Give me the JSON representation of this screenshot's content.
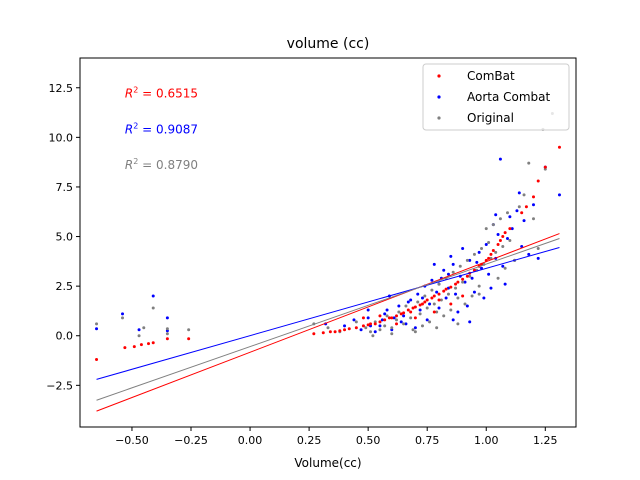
{
  "chart_data": {
    "type": "scatter",
    "title": "volume (cc)",
    "xlabel": "Volume(cc)",
    "ylabel": "",
    "xlim": [
      -0.72,
      1.38
    ],
    "ylim": [
      -4.6,
      14.0
    ],
    "xticks": [
      -0.75,
      -0.5,
      -0.25,
      0.0,
      0.25,
      0.5,
      0.75,
      1.0,
      1.25
    ],
    "xtick_labels": [
      "−0.75",
      "−0.50",
      "−0.25",
      "0.00",
      "0.25",
      "0.50",
      "0.75",
      "1.00",
      "1.25"
    ],
    "yticks": [
      -2.5,
      0.0,
      2.5,
      5.0,
      7.5,
      10.0,
      12.5
    ],
    "ytick_labels": [
      "−2.5",
      "0.0",
      "2.5",
      "5.0",
      "7.5",
      "10.0",
      "12.5"
    ],
    "grid": false,
    "legend_position": "top-right",
    "annotations": [
      {
        "prefix": "R",
        "sup": "2",
        "text": " = 0.6515",
        "color": "#ff0000",
        "x": -0.53,
        "y": 12.2
      },
      {
        "prefix": "R",
        "sup": "2",
        "text": " = 0.9087",
        "color": "#0000ff",
        "x": -0.53,
        "y": 10.4
      },
      {
        "prefix": "R",
        "sup": "2",
        "text": " = 0.8790",
        "color": "#808080",
        "x": -0.53,
        "y": 8.6
      }
    ],
    "series": [
      {
        "name": "ComBat",
        "color": "#ff0000",
        "fit": {
          "x": [
            -0.65,
            1.31
          ],
          "y": [
            -3.8,
            5.15
          ]
        },
        "points": [
          [
            -0.65,
            -1.2
          ],
          [
            -0.53,
            -0.6
          ],
          [
            -0.49,
            -0.55
          ],
          [
            -0.46,
            -0.45
          ],
          [
            -0.43,
            -0.4
          ],
          [
            -0.41,
            -0.35
          ],
          [
            -0.35,
            -0.15
          ],
          [
            -0.26,
            -0.15
          ],
          [
            0.27,
            0.1
          ],
          [
            0.31,
            0.15
          ],
          [
            0.34,
            0.2
          ],
          [
            0.36,
            0.2
          ],
          [
            0.38,
            0.25
          ],
          [
            0.4,
            0.3
          ],
          [
            0.42,
            0.35
          ],
          [
            0.45,
            0.4
          ],
          [
            0.48,
            0.5
          ],
          [
            0.5,
            0.55
          ],
          [
            0.51,
            0.6
          ],
          [
            0.53,
            0.6
          ],
          [
            0.55,
            0.7
          ],
          [
            0.57,
            0.8
          ],
          [
            0.59,
            0.9
          ],
          [
            0.6,
            0.9
          ],
          [
            0.62,
            1.0
          ],
          [
            0.64,
            1.1
          ],
          [
            0.65,
            1.15
          ],
          [
            0.67,
            1.3
          ],
          [
            0.69,
            1.4
          ],
          [
            0.7,
            1.45
          ],
          [
            0.72,
            1.55
          ],
          [
            0.74,
            1.7
          ],
          [
            0.75,
            1.8
          ],
          [
            0.77,
            1.9
          ],
          [
            0.78,
            2.0
          ],
          [
            0.8,
            2.1
          ],
          [
            0.82,
            2.25
          ],
          [
            0.83,
            2.35
          ],
          [
            0.85,
            2.45
          ],
          [
            0.87,
            2.6
          ],
          [
            0.88,
            2.7
          ],
          [
            0.9,
            2.85
          ],
          [
            0.92,
            3.0
          ],
          [
            0.93,
            3.15
          ],
          [
            0.95,
            3.3
          ],
          [
            0.97,
            3.5
          ],
          [
            0.98,
            3.6
          ],
          [
            1.0,
            3.8
          ],
          [
            1.01,
            3.9
          ],
          [
            1.02,
            4.1
          ],
          [
            1.03,
            4.3
          ],
          [
            1.05,
            4.6
          ],
          [
            1.06,
            4.8
          ],
          [
            1.07,
            5.0
          ],
          [
            1.08,
            5.2
          ],
          [
            1.1,
            5.4
          ],
          [
            1.15,
            6.2
          ],
          [
            1.17,
            6.5
          ],
          [
            1.2,
            7.0
          ],
          [
            1.22,
            7.8
          ],
          [
            1.25,
            8.5
          ],
          [
            1.31,
            9.5
          ],
          [
            0.48,
            0.9
          ],
          [
            0.55,
            1.0
          ],
          [
            0.62,
            0.6
          ],
          [
            0.7,
            0.9
          ],
          [
            0.78,
            1.2
          ],
          [
            0.85,
            1.6
          ],
          [
            0.9,
            2.0
          ],
          [
            0.68,
            1.2
          ],
          [
            0.73,
            1.6
          ],
          [
            0.8,
            1.8
          ]
        ]
      },
      {
        "name": "Aorta Combat",
        "color": "#0000ff",
        "fit": {
          "x": [
            -0.65,
            1.31
          ],
          "y": [
            -2.2,
            4.45
          ]
        },
        "points": [
          [
            -0.65,
            0.35
          ],
          [
            -0.54,
            1.1
          ],
          [
            -0.47,
            0.3
          ],
          [
            -0.41,
            2.0
          ],
          [
            -0.35,
            0.9
          ],
          [
            -0.35,
            0.25
          ],
          [
            0.32,
            0.6
          ],
          [
            0.4,
            0.5
          ],
          [
            0.44,
            0.8
          ],
          [
            0.5,
            1.3
          ],
          [
            0.51,
            0.5
          ],
          [
            0.53,
            0.2
          ],
          [
            0.55,
            0.5
          ],
          [
            0.56,
            0.8
          ],
          [
            0.58,
            1.3
          ],
          [
            0.6,
            0.3
          ],
          [
            0.61,
            0.9
          ],
          [
            0.63,
            1.5
          ],
          [
            0.65,
            1.0
          ],
          [
            0.66,
            0.6
          ],
          [
            0.68,
            1.8
          ],
          [
            0.7,
            0.4
          ],
          [
            0.71,
            2.1
          ],
          [
            0.72,
            1.3
          ],
          [
            0.74,
            2.5
          ],
          [
            0.75,
            0.8
          ],
          [
            0.76,
            1.6
          ],
          [
            0.77,
            2.8
          ],
          [
            0.78,
            3.6
          ],
          [
            0.79,
            2.2
          ],
          [
            0.8,
            1.4
          ],
          [
            0.81,
            2.9
          ],
          [
            0.82,
            3.3
          ],
          [
            0.83,
            1.9
          ],
          [
            0.84,
            2.4
          ],
          [
            0.85,
            4.0
          ],
          [
            0.86,
            3.6
          ],
          [
            0.87,
            2.1
          ],
          [
            0.88,
            1.2
          ],
          [
            0.89,
            3.0
          ],
          [
            0.9,
            4.4
          ],
          [
            0.91,
            2.7
          ],
          [
            0.92,
            1.5
          ],
          [
            0.93,
            3.8
          ],
          [
            0.94,
            2.9
          ],
          [
            0.95,
            2.2
          ],
          [
            0.96,
            3.7
          ],
          [
            0.97,
            4.2
          ],
          [
            0.98,
            3.4
          ],
          [
            0.99,
            1.9
          ],
          [
            1.0,
            4.6
          ],
          [
            1.01,
            3.1
          ],
          [
            1.02,
            2.4
          ],
          [
            1.03,
            5.6
          ],
          [
            1.04,
            3.9
          ],
          [
            1.05,
            5.1
          ],
          [
            1.06,
            8.9
          ],
          [
            1.07,
            3.5
          ],
          [
            1.08,
            2.6
          ],
          [
            1.09,
            4.9
          ],
          [
            1.1,
            6.0
          ],
          [
            1.11,
            5.4
          ],
          [
            1.12,
            3.8
          ],
          [
            1.13,
            6.3
          ],
          [
            1.14,
            7.2
          ],
          [
            1.15,
            4.5
          ],
          [
            1.16,
            5.8
          ],
          [
            1.18,
            4.1
          ],
          [
            1.2,
            6.6
          ],
          [
            1.22,
            3.9
          ],
          [
            1.25,
            8.5
          ],
          [
            1.31,
            7.1
          ],
          [
            0.5,
            0.9
          ],
          [
            0.57,
            1.1
          ],
          [
            0.64,
            0.7
          ],
          [
            0.73,
            1.9
          ],
          [
            0.8,
            2.6
          ],
          [
            0.86,
            0.8
          ],
          [
            0.47,
            0.3
          ],
          [
            0.59,
            2.0
          ],
          [
            0.67,
            1.7
          ],
          [
            0.84,
            3.1
          ],
          [
            0.93,
            0.7
          ],
          [
            1.04,
            6.1
          ]
        ]
      },
      {
        "name": "Original",
        "color": "#808080",
        "fit": {
          "x": [
            -0.65,
            1.31
          ],
          "y": [
            -3.25,
            4.9
          ]
        },
        "points": [
          [
            -0.65,
            0.6
          ],
          [
            -0.54,
            0.9
          ],
          [
            -0.47,
            0.0
          ],
          [
            -0.45,
            0.4
          ],
          [
            -0.41,
            1.4
          ],
          [
            -0.35,
            0.35
          ],
          [
            -0.35,
            0.1
          ],
          [
            -0.26,
            0.3
          ],
          [
            0.27,
            0.6
          ],
          [
            0.33,
            0.4
          ],
          [
            0.38,
            0.2
          ],
          [
            0.45,
            0.7
          ],
          [
            0.49,
            0.4
          ],
          [
            0.51,
            0.2
          ],
          [
            0.53,
            0.7
          ],
          [
            0.55,
            0.3
          ],
          [
            0.57,
            0.5
          ],
          [
            0.58,
            1.0
          ],
          [
            0.6,
            0.4
          ],
          [
            0.62,
            0.8
          ],
          [
            0.63,
            1.2
          ],
          [
            0.65,
            0.6
          ],
          [
            0.66,
            1.5
          ],
          [
            0.68,
            0.9
          ],
          [
            0.69,
            0.3
          ],
          [
            0.71,
            1.7
          ],
          [
            0.72,
            1.1
          ],
          [
            0.73,
            0.5
          ],
          [
            0.74,
            2.0
          ],
          [
            0.75,
            1.4
          ],
          [
            0.76,
            0.7
          ],
          [
            0.77,
            2.3
          ],
          [
            0.78,
            1.6
          ],
          [
            0.79,
            0.4
          ],
          [
            0.8,
            2.6
          ],
          [
            0.81,
            1.8
          ],
          [
            0.82,
            1.0
          ],
          [
            0.83,
            2.9
          ],
          [
            0.84,
            2.1
          ],
          [
            0.85,
            1.3
          ],
          [
            0.86,
            3.2
          ],
          [
            0.87,
            2.4
          ],
          [
            0.88,
            0.6
          ],
          [
            0.89,
            3.5
          ],
          [
            0.9,
            2.7
          ],
          [
            0.91,
            1.6
          ],
          [
            0.92,
            3.8
          ],
          [
            0.93,
            3.0
          ],
          [
            0.94,
            2.0
          ],
          [
            0.95,
            4.1
          ],
          [
            0.96,
            3.3
          ],
          [
            0.97,
            2.5
          ],
          [
            0.98,
            4.4
          ],
          [
            0.99,
            3.6
          ],
          [
            1.0,
            5.4
          ],
          [
            1.01,
            4.7
          ],
          [
            1.02,
            3.9
          ],
          [
            1.03,
            5.6
          ],
          [
            1.04,
            4.2
          ],
          [
            1.05,
            2.9
          ],
          [
            1.06,
            5.9
          ],
          [
            1.07,
            4.5
          ],
          [
            1.08,
            3.4
          ],
          [
            1.09,
            6.2
          ],
          [
            1.1,
            4.8
          ],
          [
            1.12,
            3.8
          ],
          [
            1.14,
            6.5
          ],
          [
            1.16,
            7.1
          ],
          [
            1.18,
            8.7
          ],
          [
            1.2,
            5.9
          ],
          [
            1.22,
            4.4
          ],
          [
            1.24,
            10.4
          ],
          [
            1.25,
            8.4
          ],
          [
            1.28,
            11.2
          ],
          [
            0.52,
            0.0
          ],
          [
            0.6,
            0.1
          ],
          [
            0.7,
            0.2
          ],
          [
            0.79,
            1.2
          ],
          [
            0.88,
            1.9
          ],
          [
            0.97,
            2.1
          ]
        ]
      }
    ]
  }
}
